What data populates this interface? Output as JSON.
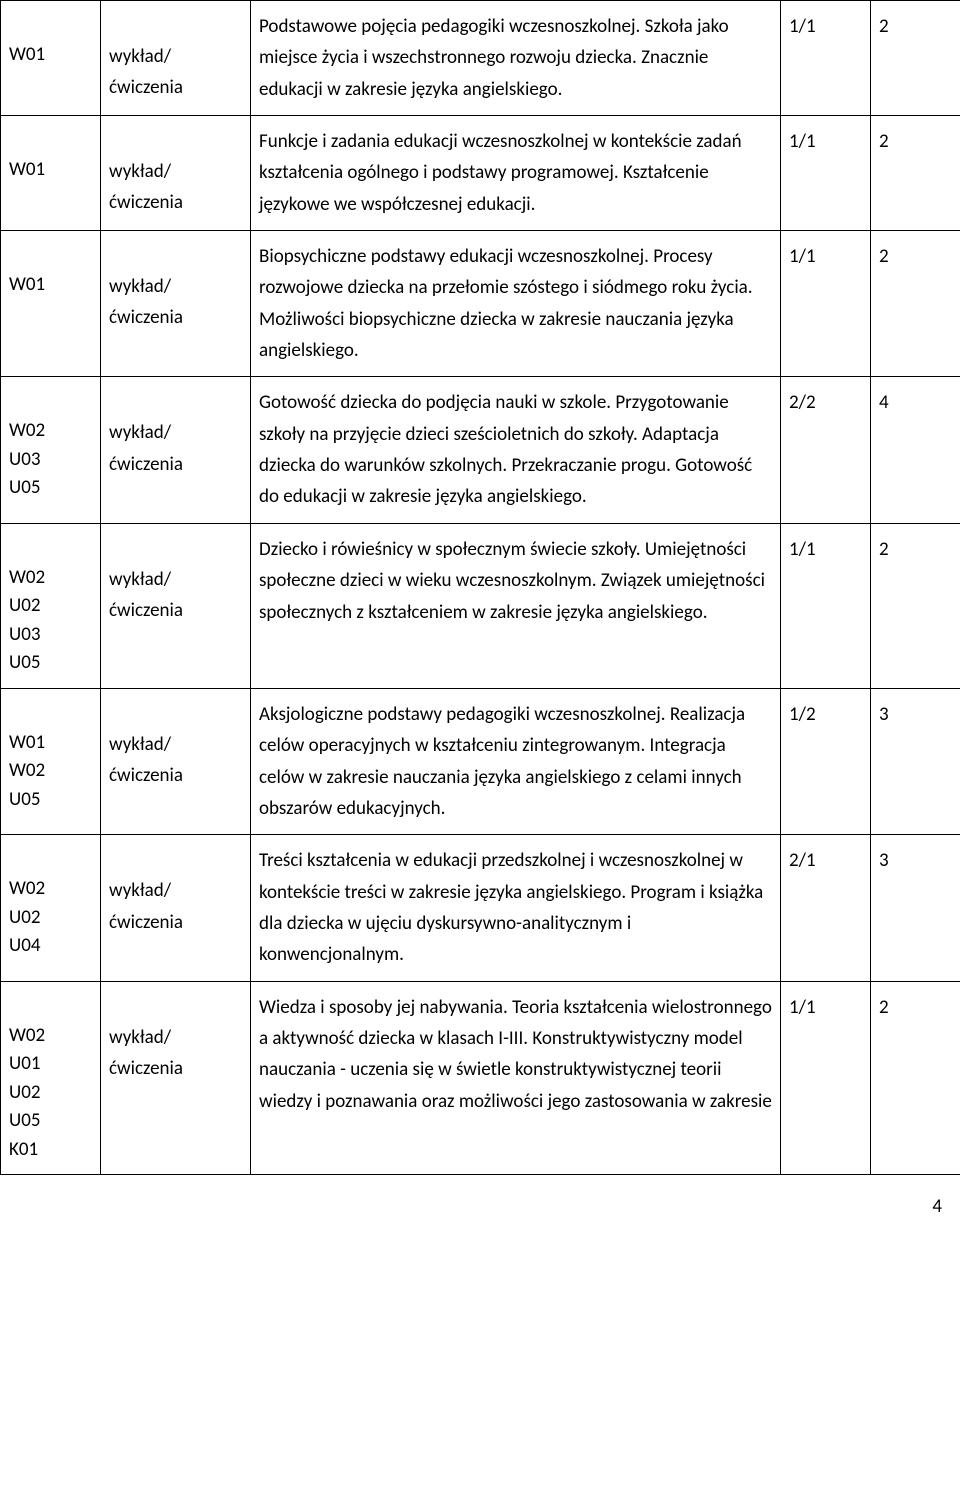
{
  "rows": [
    {
      "codes": "W01",
      "format": "wykład/\nćwiczenia",
      "content": "Podstawowe pojęcia pedagogiki wczesnoszkolnej. Szkoła jako miejsce życia i wszechstronnego rozwoju dziecka. Znacznie edukacji w zakresie języka angielskiego.",
      "ratio": "1/1",
      "hours": "2"
    },
    {
      "codes": "W01",
      "format": "wykład/\nćwiczenia",
      "content": "Funkcje i zadania edukacji wczesnoszkolnej w kontekście zadań kształcenia ogólnego i podstawy programowej. Kształcenie językowe we współczesnej edukacji.",
      "ratio": "1/1",
      "hours": "2"
    },
    {
      "codes": "W01",
      "format": "wykład/\nćwiczenia",
      "content": "Biopsychiczne podstawy edukacji wczesnoszkolnej. Procesy rozwojowe dziecka na przełomie szóstego i siódmego roku życia. Możliwości biopsychiczne dziecka w  zakresie nauczania języka  angielskiego.",
      "ratio": "1/1",
      "hours": "2"
    },
    {
      "codes": "W02\nU03\nU05",
      "format": "wykład/\nćwiczenia",
      "content": "Gotowość dziecka do podjęcia nauki w szkole. Przygotowanie szkoły na przyjęcie dzieci sześcioletnich do szkoły. Adaptacja dziecka do warunków szkolnych. Przekraczanie progu. Gotowość do edukacji  w zakresie języka angielskiego.",
      "ratio": "2/2",
      "hours": "4"
    },
    {
      "codes": "W02\nU02\nU03\nU05",
      "format": "wykład/\nćwiczenia",
      "content": "Dziecko i rówieśnicy w społecznym świecie szkoły. Umiejętności  społeczne dzieci w wieku wczesnoszkolnym. Związek umiejętności społecznych z kształceniem w zakresie języka angielskiego.",
      "ratio": "1/1",
      "hours": "2"
    },
    {
      "codes": "W01\nW02\nU05",
      "format": "wykład/\nćwiczenia",
      "content": "Aksjologiczne podstawy pedagogiki wczesnoszkolnej. Realizacja  celów operacyjnych w kształceniu zintegrowanym. Integracja celów w zakresie nauczania języka angielskiego z celami innych  obszarów edukacyjnych.",
      "ratio": "1/2",
      "hours": "3"
    },
    {
      "codes": "W02\nU02\nU04",
      "format": "wykład/\nćwiczenia",
      "content": "Treści kształcenia w edukacji  przedszkolnej i wczesnoszkolnej w kontekście treści w zakresie języka angielskiego. Program i  książka dla dziecka w ujęciu dyskursywno-analitycznym i konwencjonalnym.",
      "ratio": "2/1",
      "hours": "3"
    },
    {
      "codes": "W02\nU01\nU02\nU05\nK01",
      "format": "wykład/\nćwiczenia",
      "content": "Wiedza i sposoby jej nabywania. Teoria kształcenia wielostronnego a aktywność dziecka w klasach I-III. Konstruktywistyczny model nauczania - uczenia się w świetle konstruktywistycznej teorii wiedzy i poznawania oraz  możliwości  jego zastosowania w zakresie",
      "ratio": "1/1",
      "hours": "2"
    }
  ],
  "pageNumber": "4"
}
